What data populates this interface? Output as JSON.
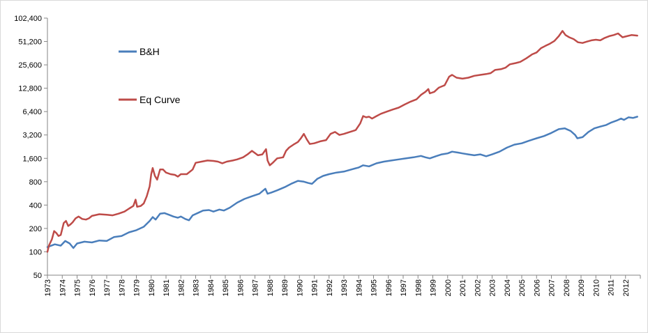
{
  "chart_data": {
    "type": "line",
    "y_scale": "log2",
    "ylim": [
      50,
      102400
    ],
    "y_ticks": [
      50,
      100,
      200,
      400,
      800,
      1600,
      3200,
      6400,
      12800,
      25600,
      51200,
      102400
    ],
    "y_tick_labels": [
      "50",
      "100",
      "200",
      "400",
      "800",
      "1,600",
      "3,200",
      "6,400",
      "12,800",
      "25,600",
      "51,200",
      "102,400"
    ],
    "xlim": [
      1973,
      2013
    ],
    "x_tick_labels": [
      "1973",
      "1974",
      "1975",
      "1976",
      "1977",
      "1978",
      "1979",
      "1980",
      "1981",
      "1982",
      "1983",
      "1984",
      "1985",
      "1986",
      "1987",
      "1988",
      "1989",
      "1990",
      "1991",
      "1992",
      "1993",
      "1994",
      "1995",
      "1996",
      "1997",
      "1998",
      "1999",
      "2000",
      "2001",
      "2002",
      "2003",
      "2004",
      "2005",
      "2006",
      "2007",
      "2008",
      "2009",
      "2010",
      "2011",
      "2012"
    ],
    "grid": false,
    "legend_position": "top-left",
    "series": [
      {
        "name": "B&H",
        "color": "#4a7ebb",
        "points": [
          [
            1973.0,
            115
          ],
          [
            1973.5,
            125
          ],
          [
            1973.9,
            120
          ],
          [
            1974.2,
            138
          ],
          [
            1974.5,
            128
          ],
          [
            1974.75,
            112
          ],
          [
            1975.0,
            128
          ],
          [
            1975.5,
            135
          ],
          [
            1976.0,
            132
          ],
          [
            1976.5,
            140
          ],
          [
            1977.0,
            138
          ],
          [
            1977.5,
            155
          ],
          [
            1978.0,
            160
          ],
          [
            1978.5,
            178
          ],
          [
            1979.0,
            190
          ],
          [
            1979.5,
            210
          ],
          [
            1979.9,
            250
          ],
          [
            1980.1,
            280
          ],
          [
            1980.3,
            260
          ],
          [
            1980.6,
            310
          ],
          [
            1980.9,
            315
          ],
          [
            1981.2,
            300
          ],
          [
            1981.5,
            285
          ],
          [
            1981.8,
            275
          ],
          [
            1982.0,
            285
          ],
          [
            1982.3,
            265
          ],
          [
            1982.55,
            255
          ],
          [
            1982.8,
            295
          ],
          [
            1983.2,
            320
          ],
          [
            1983.5,
            340
          ],
          [
            1983.9,
            345
          ],
          [
            1984.2,
            330
          ],
          [
            1984.6,
            350
          ],
          [
            1984.9,
            340
          ],
          [
            1985.3,
            370
          ],
          [
            1985.8,
            430
          ],
          [
            1986.3,
            480
          ],
          [
            1986.8,
            520
          ],
          [
            1987.3,
            560
          ],
          [
            1987.7,
            650
          ],
          [
            1987.85,
            560
          ],
          [
            1988.1,
            580
          ],
          [
            1988.5,
            620
          ],
          [
            1989.0,
            680
          ],
          [
            1989.5,
            760
          ],
          [
            1989.9,
            820
          ],
          [
            1990.3,
            800
          ],
          [
            1990.6,
            770
          ],
          [
            1990.85,
            750
          ],
          [
            1991.2,
            870
          ],
          [
            1991.6,
            950
          ],
          [
            1992.0,
            1000
          ],
          [
            1992.5,
            1050
          ],
          [
            1993.0,
            1080
          ],
          [
            1993.5,
            1150
          ],
          [
            1994.0,
            1220
          ],
          [
            1994.3,
            1300
          ],
          [
            1994.7,
            1260
          ],
          [
            1995.2,
            1380
          ],
          [
            1995.7,
            1450
          ],
          [
            1996.2,
            1500
          ],
          [
            1996.7,
            1550
          ],
          [
            1997.2,
            1600
          ],
          [
            1997.7,
            1650
          ],
          [
            1998.2,
            1720
          ],
          [
            1998.5,
            1650
          ],
          [
            1998.8,
            1600
          ],
          [
            1999.2,
            1700
          ],
          [
            1999.6,
            1800
          ],
          [
            2000.0,
            1850
          ],
          [
            2000.3,
            1950
          ],
          [
            2000.7,
            1900
          ],
          [
            2001.0,
            1850
          ],
          [
            2001.4,
            1800
          ],
          [
            2001.8,
            1750
          ],
          [
            2002.2,
            1800
          ],
          [
            2002.6,
            1700
          ],
          [
            2003.0,
            1800
          ],
          [
            2003.5,
            1950
          ],
          [
            2004.0,
            2200
          ],
          [
            2004.5,
            2400
          ],
          [
            2005.0,
            2500
          ],
          [
            2005.5,
            2700
          ],
          [
            2006.0,
            2900
          ],
          [
            2006.5,
            3100
          ],
          [
            2007.0,
            3400
          ],
          [
            2007.5,
            3800
          ],
          [
            2007.9,
            3900
          ],
          [
            2008.3,
            3600
          ],
          [
            2008.6,
            3200
          ],
          [
            2008.75,
            2900
          ],
          [
            2009.1,
            3000
          ],
          [
            2009.5,
            3500
          ],
          [
            2009.9,
            3900
          ],
          [
            2010.3,
            4100
          ],
          [
            2010.7,
            4300
          ],
          [
            2011.0,
            4600
          ],
          [
            2011.4,
            4900
          ],
          [
            2011.7,
            5200
          ],
          [
            2011.9,
            5000
          ],
          [
            2012.2,
            5400
          ],
          [
            2012.5,
            5300
          ],
          [
            2012.8,
            5500
          ]
        ]
      },
      {
        "name": "Eq Curve",
        "color": "#be4b48",
        "points": [
          [
            1973.0,
            100
          ],
          [
            1973.1,
            120
          ],
          [
            1973.3,
            145
          ],
          [
            1973.45,
            185
          ],
          [
            1973.6,
            175
          ],
          [
            1973.75,
            160
          ],
          [
            1973.9,
            165
          ],
          [
            1974.1,
            235
          ],
          [
            1974.25,
            250
          ],
          [
            1974.4,
            215
          ],
          [
            1974.55,
            225
          ],
          [
            1974.7,
            240
          ],
          [
            1974.9,
            270
          ],
          [
            1975.1,
            285
          ],
          [
            1975.35,
            265
          ],
          [
            1975.6,
            260
          ],
          [
            1975.8,
            270
          ],
          [
            1976.0,
            290
          ],
          [
            1976.5,
            305
          ],
          [
            1977.0,
            300
          ],
          [
            1977.4,
            295
          ],
          [
            1977.8,
            310
          ],
          [
            1978.2,
            330
          ],
          [
            1978.5,
            360
          ],
          [
            1978.8,
            390
          ],
          [
            1978.95,
            470
          ],
          [
            1979.05,
            380
          ],
          [
            1979.3,
            390
          ],
          [
            1979.5,
            420
          ],
          [
            1979.7,
            520
          ],
          [
            1979.9,
            700
          ],
          [
            1980.0,
            1000
          ],
          [
            1980.1,
            1200
          ],
          [
            1980.25,
            950
          ],
          [
            1980.4,
            850
          ],
          [
            1980.6,
            1150
          ],
          [
            1980.8,
            1150
          ],
          [
            1981.0,
            1050
          ],
          [
            1981.3,
            1000
          ],
          [
            1981.6,
            980
          ],
          [
            1981.8,
            930
          ],
          [
            1982.0,
            1000
          ],
          [
            1982.4,
            1000
          ],
          [
            1982.8,
            1150
          ],
          [
            1983.0,
            1400
          ],
          [
            1983.4,
            1450
          ],
          [
            1983.8,
            1500
          ],
          [
            1984.2,
            1480
          ],
          [
            1984.5,
            1450
          ],
          [
            1984.8,
            1380
          ],
          [
            1985.1,
            1450
          ],
          [
            1985.5,
            1500
          ],
          [
            1985.8,
            1550
          ],
          [
            1986.2,
            1650
          ],
          [
            1986.5,
            1800
          ],
          [
            1986.8,
            2000
          ],
          [
            1987.2,
            1750
          ],
          [
            1987.5,
            1800
          ],
          [
            1987.75,
            2100
          ],
          [
            1987.85,
            1500
          ],
          [
            1988.0,
            1300
          ],
          [
            1988.2,
            1400
          ],
          [
            1988.5,
            1600
          ],
          [
            1988.9,
            1650
          ],
          [
            1989.1,
            2000
          ],
          [
            1989.3,
            2200
          ],
          [
            1989.6,
            2400
          ],
          [
            1989.9,
            2600
          ],
          [
            1990.1,
            2900
          ],
          [
            1990.3,
            3300
          ],
          [
            1990.5,
            2800
          ],
          [
            1990.7,
            2450
          ],
          [
            1991.0,
            2500
          ],
          [
            1991.4,
            2650
          ],
          [
            1991.8,
            2750
          ],
          [
            1992.1,
            3300
          ],
          [
            1992.4,
            3500
          ],
          [
            1992.7,
            3200
          ],
          [
            1993.0,
            3300
          ],
          [
            1993.4,
            3500
          ],
          [
            1993.8,
            3700
          ],
          [
            1994.1,
            4500
          ],
          [
            1994.3,
            5600
          ],
          [
            1994.5,
            5400
          ],
          [
            1994.7,
            5500
          ],
          [
            1994.9,
            5200
          ],
          [
            1995.2,
            5600
          ],
          [
            1995.5,
            6000
          ],
          [
            1995.9,
            6400
          ],
          [
            1996.3,
            6800
          ],
          [
            1996.7,
            7200
          ],
          [
            1997.1,
            7900
          ],
          [
            1997.5,
            8600
          ],
          [
            1997.9,
            9200
          ],
          [
            1998.2,
            10500
          ],
          [
            1998.5,
            11500
          ],
          [
            1998.7,
            12500
          ],
          [
            1998.8,
            11000
          ],
          [
            1999.1,
            11500
          ],
          [
            1999.4,
            13000
          ],
          [
            1999.8,
            14000
          ],
          [
            2000.1,
            18000
          ],
          [
            2000.3,
            19000
          ],
          [
            2000.6,
            17500
          ],
          [
            2001.0,
            17000
          ],
          [
            2001.4,
            17500
          ],
          [
            2001.8,
            18500
          ],
          [
            2002.2,
            19000
          ],
          [
            2002.6,
            19500
          ],
          [
            2002.9,
            20000
          ],
          [
            2003.2,
            22000
          ],
          [
            2003.6,
            22500
          ],
          [
            2003.9,
            23500
          ],
          [
            2004.2,
            26000
          ],
          [
            2004.6,
            27000
          ],
          [
            2004.9,
            28000
          ],
          [
            2005.3,
            31000
          ],
          [
            2005.7,
            35000
          ],
          [
            2006.0,
            37000
          ],
          [
            2006.3,
            42000
          ],
          [
            2006.6,
            45000
          ],
          [
            2006.9,
            48000
          ],
          [
            2007.2,
            52000
          ],
          [
            2007.5,
            60000
          ],
          [
            2007.75,
            70000
          ],
          [
            2007.95,
            62000
          ],
          [
            2008.2,
            58000
          ],
          [
            2008.5,
            55000
          ],
          [
            2008.8,
            50000
          ],
          [
            2009.1,
            49000
          ],
          [
            2009.4,
            51000
          ],
          [
            2009.7,
            53000
          ],
          [
            2010.0,
            54000
          ],
          [
            2010.3,
            53000
          ],
          [
            2010.6,
            57000
          ],
          [
            2010.9,
            60000
          ],
          [
            2011.2,
            62000
          ],
          [
            2011.5,
            65000
          ],
          [
            2011.8,
            58000
          ],
          [
            2012.1,
            60000
          ],
          [
            2012.4,
            62000
          ],
          [
            2012.8,
            61000
          ]
        ]
      }
    ]
  }
}
